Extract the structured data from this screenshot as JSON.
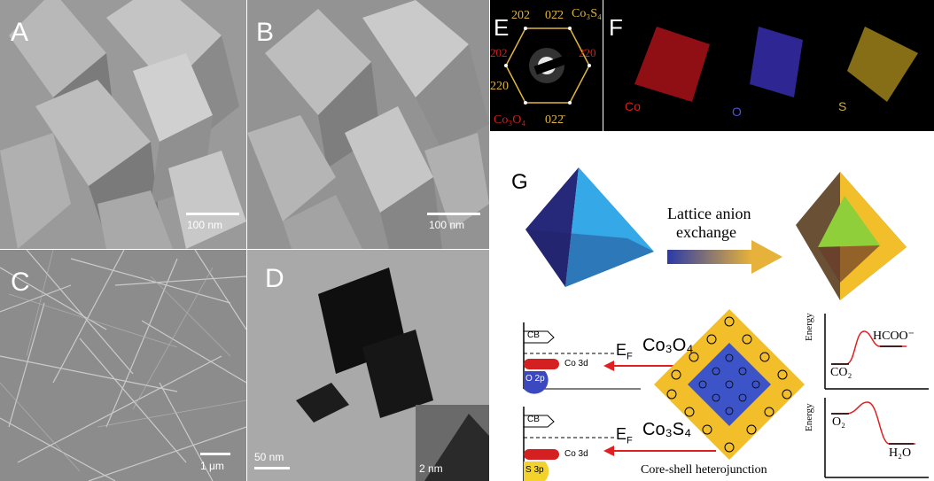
{
  "panels": {
    "a": {
      "label": "A",
      "scale": "100 nm"
    },
    "b": {
      "label": "B",
      "scale": "100 nm"
    },
    "c": {
      "label": "C",
      "scale": "1 μm"
    },
    "d": {
      "label": "D",
      "scale": "50 nm",
      "inset_scale": "2 nm"
    },
    "e": {
      "label": "E",
      "idx_202": "202",
      "idx_022_top": "02̄2",
      "phase_top": "Co₃S₄",
      "idx_202_bar": "2̄02",
      "idx_220_bar": "2̄20",
      "idx_220": "220",
      "phase_bottom": "Co₃O₄",
      "idx_022_bottom": "022̄"
    },
    "f": {
      "label": "F",
      "el_co": "Co",
      "el_o": "O",
      "el_s": "S"
    },
    "g": {
      "label": "G",
      "arrow_text_1": "Lattice anion",
      "arrow_text_2": "exchange",
      "cb_label": "CB",
      "ef_label": "E",
      "ef_sub": "F",
      "co3o4": "Co₃O₄",
      "co3s4": "Co₃S₄",
      "co3d": "Co 3d",
      "o2p": "O 2p",
      "s3p": "S 3p",
      "core_shell": "Core-shell heterojunction",
      "energy": "Energy",
      "hcoo": "HCOO⁻",
      "co2": "CO₂",
      "o2": "O₂",
      "h2o": "H₂O"
    }
  },
  "colors": {
    "co_map": "#c0141c",
    "o_map": "#3a2fb8",
    "s_map": "#a88a1c",
    "shell": "#f2bf2b",
    "core": "#3d54c8"
  }
}
